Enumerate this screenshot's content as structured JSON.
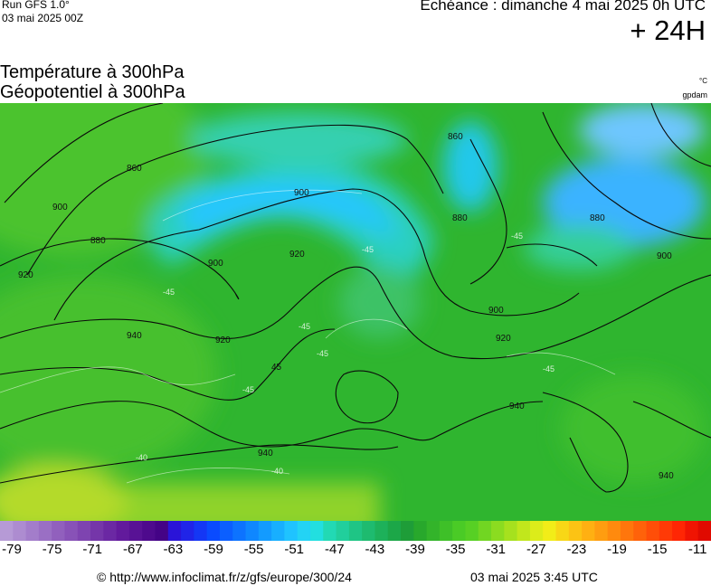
{
  "header": {
    "run_label": "Run GFS 1.0°",
    "run_date": "03 mai 2025 00Z",
    "echeance": "Echéance : dimanche 4 mai 2025 0h UTC",
    "lead_time": "+ 24H"
  },
  "titles": {
    "line1": "Température à 300hPa",
    "line2": "Géopotentiel à 300hPa",
    "unit_temperature": "°C",
    "unit_geopotential": "gpdam"
  },
  "map": {
    "region": "europe",
    "colors": {
      "base": "#2fb52f",
      "warm_green": "#5ecb2e",
      "cold_cyan": "#23d8f0",
      "cold_blue": "#2aa6ff",
      "cold_mid": "#27c48f",
      "south_yellow": "#b3d92b"
    },
    "contour_labels": [
      "860",
      "880",
      "900",
      "920",
      "940",
      "900",
      "920",
      "940",
      "880",
      "860",
      "880",
      "900",
      "900",
      "920",
      "940",
      "940",
      "920",
      "900",
      "880",
      "900"
    ],
    "isotherm_labels": [
      "-45",
      "-45",
      "-45",
      "-45",
      "-45",
      "-40",
      "-40",
      "-45",
      "-45"
    ]
  },
  "scale": {
    "colors": [
      "#b69ad6",
      "#ad8cd0",
      "#a37dca",
      "#9a6fc4",
      "#9160bd",
      "#8852b7",
      "#7e44b0",
      "#7536a9",
      "#6b28a3",
      "#621a9c",
      "#581295",
      "#4e0a8d",
      "#440386",
      "#2a14d8",
      "#2024e8",
      "#1437f5",
      "#0a4bff",
      "#0b5fff",
      "#0d73ff",
      "#0f87ff",
      "#139bff",
      "#18afff",
      "#1fc3ff",
      "#23d3f5",
      "#22dfe0",
      "#22d9b4",
      "#21cf9c",
      "#1fc585",
      "#1ebb6f",
      "#1db15a",
      "#1ca748",
      "#1e9d38",
      "#28a82c",
      "#33b42a",
      "#3ec028",
      "#4acb26",
      "#57d024",
      "#71d622",
      "#8bdc20",
      "#a6e11e",
      "#c1e71c",
      "#dcec1a",
      "#f2ed18",
      "#f8d716",
      "#fcc314",
      "#ffb012",
      "#ff9d10",
      "#ff8a0e",
      "#ff760c",
      "#ff620a",
      "#ff4e08",
      "#ff3a06",
      "#ff2604",
      "#f01402",
      "#e00a00"
    ],
    "tick_labels": [
      "-79",
      "-75",
      "-71",
      "-67",
      "-63",
      "-59",
      "-55",
      "-51",
      "-47",
      "-43",
      "-39",
      "-35",
      "-31",
      "-27",
      "-23",
      "-19",
      "-15",
      "-11"
    ]
  },
  "footer": {
    "credit": "© http://www.infoclimat.fr/z/gfs/europe/300/24",
    "updated": "03 mai 2025  3:45 UTC"
  }
}
